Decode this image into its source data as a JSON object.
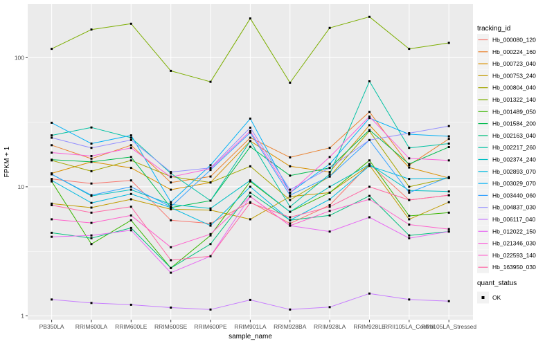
{
  "figure": {
    "x_axis_title": "sample_name",
    "y_axis_title": "FPKM + 1"
  },
  "chart_data": {
    "type": "line",
    "y_scale": "log10",
    "xlabel": "sample_name",
    "ylabel": "FPKM + 1",
    "ylim": [
      0.93,
      260
    ],
    "yticks": [
      1,
      10,
      100
    ],
    "minor_breaks": [
      3.1623,
      31.623
    ],
    "grid": "on",
    "legend_position": "right",
    "legend_title": "tracking_id",
    "point_marker": "black-square",
    "categories": [
      "PB350LA",
      "RRIM600LA",
      "RRIM600LE",
      "RRIM600SE",
      "RRIM600PE",
      "RRIM901LA",
      "RRIM928BA",
      "RRIM928LA",
      "RRIM928LE",
      "RRII105LA_Control",
      "RRII105LA_Stressed"
    ],
    "series": [
      {
        "name": "Hb_000080_120",
        "color": "#F8766D",
        "values": [
          11.5,
          10.6,
          11.2,
          5.5,
          5.2,
          7.6,
          5.2,
          7.2,
          15,
          7.9,
          8.6
        ]
      },
      {
        "name": "Hb_000224_160",
        "color": "#EA8331",
        "values": [
          21,
          16.5,
          21,
          10.8,
          12,
          24,
          16.9,
          20,
          38,
          14.7,
          23.5
        ]
      },
      {
        "name": "Hb_000723_040",
        "color": "#D89000",
        "values": [
          12.7,
          15.6,
          14,
          9.5,
          10.8,
          22.6,
          14.4,
          13,
          30,
          14.1,
          11.7
        ]
      },
      {
        "name": "Hb_000753_240",
        "color": "#C09B00",
        "values": [
          7.4,
          6.9,
          8,
          6.7,
          6.6,
          5.6,
          8.4,
          9,
          14.7,
          5.6,
          7.6
        ]
      },
      {
        "name": "Hb_000804_040",
        "color": "#A3A500",
        "values": [
          16,
          13.2,
          16,
          12,
          10.8,
          14.4,
          7.9,
          12,
          27,
          10,
          11.7
        ]
      },
      {
        "name": "Hb_001322_140",
        "color": "#7CAE00",
        "values": [
          117,
          165,
          183,
          79,
          65,
          201,
          64,
          170,
          207,
          117,
          130
        ]
      },
      {
        "name": "Hb_001489_050",
        "color": "#39B600",
        "values": [
          11,
          3.6,
          5.5,
          2.35,
          4.2,
          11,
          6.4,
          9,
          16,
          5.95,
          6.3
        ]
      },
      {
        "name": "Hb_001584_200",
        "color": "#00BB4E",
        "values": [
          16.2,
          15.6,
          17,
          6.9,
          7.8,
          20.4,
          12.2,
          14,
          27.5,
          15,
          20.3
        ]
      },
      {
        "name": "Hb_002163_040",
        "color": "#00BF7D",
        "values": [
          4.4,
          4,
          4.8,
          2.35,
          3.6,
          9,
          5.5,
          6,
          8.5,
          4.2,
          4.5
        ]
      },
      {
        "name": "Hb_002217_260",
        "color": "#00C1A3",
        "values": [
          25,
          28.8,
          24,
          12.7,
          7.8,
          22.6,
          7,
          12.5,
          65.6,
          20,
          21.6
        ]
      },
      {
        "name": "Hb_002374_240",
        "color": "#00BFC4",
        "values": [
          12.5,
          8.5,
          9.5,
          7.3,
          6.8,
          11.2,
          6.4,
          10,
          14.9,
          9.35,
          9.2
        ]
      },
      {
        "name": "Hb_002893_070",
        "color": "#00BAE0",
        "values": [
          11.2,
          7.5,
          8.8,
          6.9,
          5,
          10,
          5.5,
          8,
          14.5,
          11.5,
          11.7
        ]
      },
      {
        "name": "Hb_003029_070",
        "color": "#00B0F6",
        "values": [
          31.3,
          21.6,
          25,
          7.6,
          14.7,
          33.7,
          9,
          15,
          34,
          25.5,
          24.6
        ]
      },
      {
        "name": "Hb_003440_060",
        "color": "#35A2FF",
        "values": [
          12.5,
          8.6,
          10,
          7,
          13.5,
          26.2,
          8.6,
          12,
          23,
          9,
          11.9
        ]
      },
      {
        "name": "Hb_004837_030",
        "color": "#9590FF",
        "values": [
          24,
          20,
          23,
          13,
          14,
          28.7,
          9.5,
          14,
          23,
          26,
          29.5
        ]
      },
      {
        "name": "Hb_006117_040",
        "color": "#C77CFF",
        "values": [
          1.34,
          1.26,
          1.22,
          1.16,
          1.12,
          1.33,
          1.12,
          1.17,
          1.49,
          1.34,
          1.3
        ]
      },
      {
        "name": "Hb_012022_150",
        "color": "#E76BF3",
        "values": [
          4.1,
          4.2,
          4.6,
          2.16,
          2.9,
          8.4,
          5,
          4.5,
          5.8,
          4,
          4.5
        ]
      },
      {
        "name": "Hb_021346_030",
        "color": "#FA62DB",
        "values": [
          18.4,
          17.3,
          20,
          11.9,
          13.8,
          27,
          9,
          17,
          35,
          16.6,
          16
        ]
      },
      {
        "name": "Hb_022593_140",
        "color": "#FF61CC",
        "values": [
          5.6,
          5.25,
          6,
          3.4,
          4.3,
          8.4,
          5,
          6.5,
          8,
          5.1,
          4.7
        ]
      },
      {
        "name": "Hb_163950_030",
        "color": "#FF67A4",
        "values": [
          7.2,
          6.3,
          7,
          2.7,
          2.9,
          7.5,
          5.8,
          7,
          10,
          7.9,
          8.6
        ]
      }
    ],
    "quant_legend": {
      "title": "quant_status",
      "items": [
        {
          "label": "OK",
          "marker": "black-square"
        }
      ]
    },
    "style": {
      "panel_bg": "#EBEBEB",
      "grid_color": "#FFFFFF",
      "tick_label_color": "#4D4D4D",
      "text_color": "#000000",
      "tick_mark_color": "#333333",
      "legend_key_bg": "#F2F2F2",
      "marker_color": "#000000"
    }
  }
}
